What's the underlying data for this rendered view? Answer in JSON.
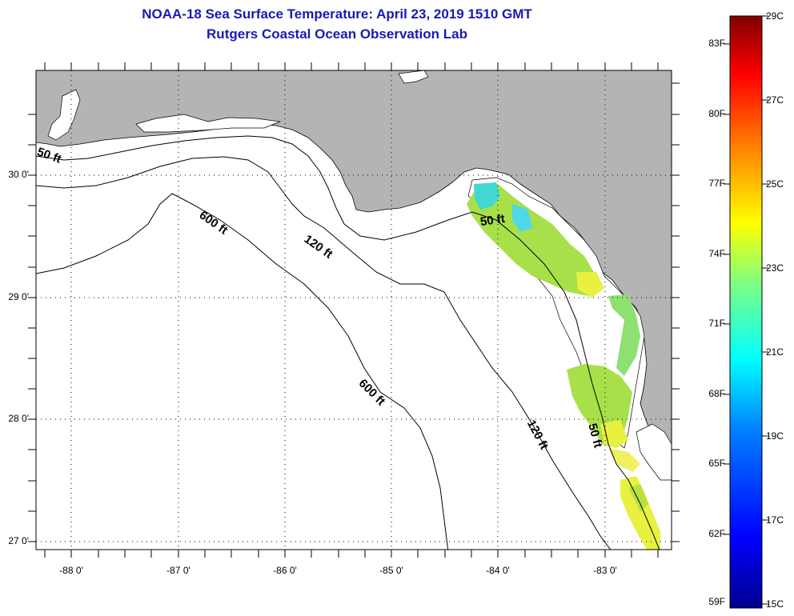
{
  "title": {
    "line1": "NOAA-18 Sea Surface Temperature:  April 23, 2019 1510 GMT",
    "line2": "Rutgers Coastal Ocean Observation Lab"
  },
  "map": {
    "longitude_labels": [
      "-88 0'",
      "-87 0'",
      "-86 0'",
      "-85 0'",
      "-84 0'",
      "-83 0'"
    ],
    "latitude_labels": [
      "30 0'",
      "29 0'",
      "28 0'",
      "27 0'"
    ],
    "contour_labels": [
      "50 ft",
      "600 ft",
      "120 ft",
      "50 ft",
      "600 ft",
      "120 ft",
      "50 ft"
    ],
    "colors": {
      "land": "#b4b4b4",
      "ocean": "#ffffff",
      "cloud_mask": "#ffffff"
    }
  },
  "colorbar": {
    "fahrenheit_labels": [
      "83F",
      "80F",
      "77F",
      "74F",
      "71F",
      "68F",
      "65F",
      "62F",
      "59F"
    ],
    "celsius_labels": [
      "29C",
      "27C",
      "25C",
      "23C",
      "21C",
      "19C",
      "17C",
      "15C"
    ],
    "colors": [
      "#00008f",
      "#0000ff",
      "#0080ff",
      "#00ffff",
      "#80ff80",
      "#ffff00",
      "#ff8000",
      "#ff0000",
      "#800000"
    ]
  }
}
